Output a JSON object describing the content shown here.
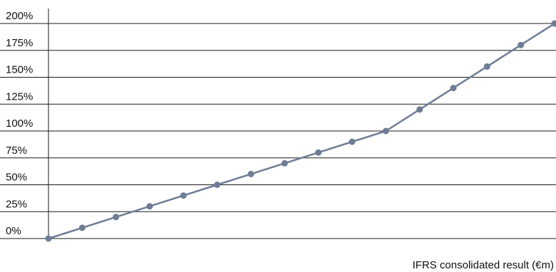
{
  "chart_data": {
    "type": "line",
    "title": "",
    "xlabel": "IFRS consolidated result (€m)",
    "ylabel": "",
    "y_ticks": [
      "0%",
      "25%",
      "50%",
      "75%",
      "100%",
      "125%",
      "150%",
      "175%",
      "200%"
    ],
    "ylim": [
      0,
      200
    ],
    "grid": true,
    "legend": "none",
    "colors": {
      "line": "#6f7c95",
      "grid": "#1a1a1a",
      "text": "#111111"
    },
    "series": [
      {
        "x": [
          0,
          1,
          2,
          3,
          4,
          5,
          6,
          7,
          8,
          9,
          10,
          11,
          12,
          13,
          14,
          15
        ],
        "values": [
          0,
          10,
          20,
          30,
          40,
          50,
          60,
          70,
          80,
          90,
          100,
          120,
          140,
          160,
          180,
          200
        ]
      }
    ]
  }
}
